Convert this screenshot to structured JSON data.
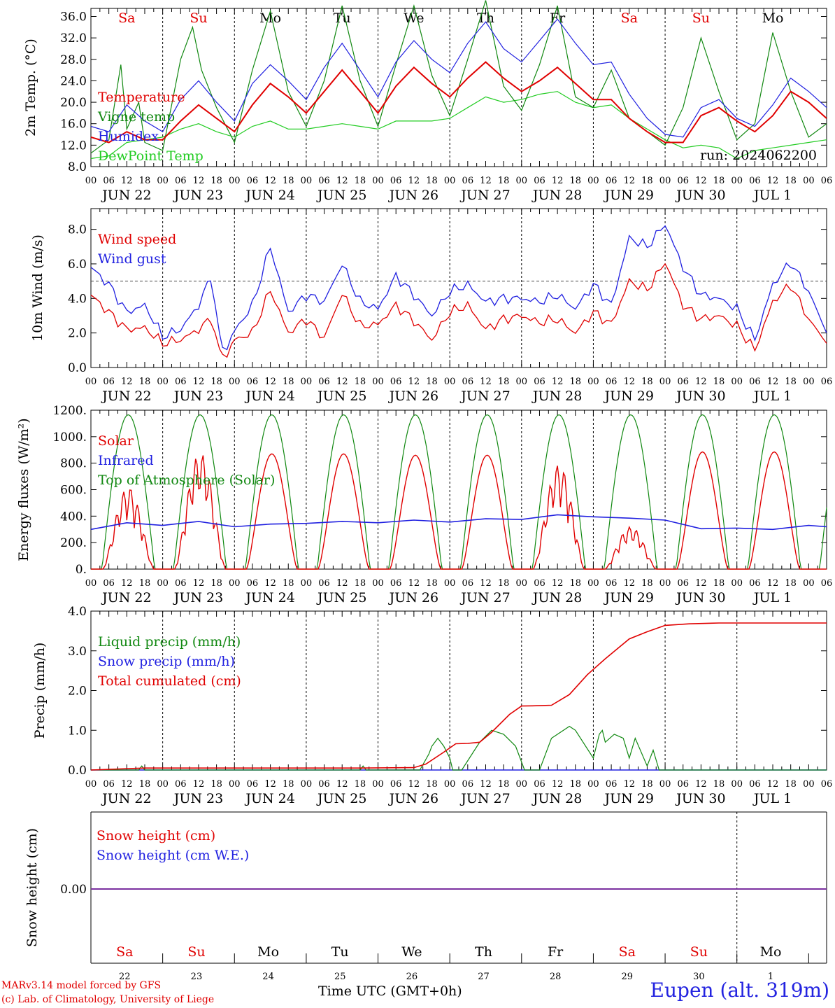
{
  "run_label": "run: 2024062200",
  "footer": {
    "model": "MARv3.14 model forced by GFS",
    "lab": "(c) Lab. of Climatology, University of Liege",
    "time_axis": "Time UTC (GMT+0h)",
    "location": "Eupen (alt. 319m)"
  },
  "days": [
    {
      "abbr": "Sa",
      "date": "JUN 22",
      "num": "22",
      "weekend": true
    },
    {
      "abbr": "Su",
      "date": "JUN 23",
      "num": "23",
      "weekend": true
    },
    {
      "abbr": "Mo",
      "date": "JUN 24",
      "num": "24",
      "weekend": false
    },
    {
      "abbr": "Tu",
      "date": "JUN 25",
      "num": "25",
      "weekend": false
    },
    {
      "abbr": "We",
      "date": "JUN 26",
      "num": "26",
      "weekend": false
    },
    {
      "abbr": "Th",
      "date": "JUN 27",
      "num": "27",
      "weekend": false
    },
    {
      "abbr": "Fr",
      "date": "JUN 28",
      "num": "28",
      "weekend": false
    },
    {
      "abbr": "Sa",
      "date": "JUN 29",
      "num": "29",
      "weekend": true
    },
    {
      "abbr": "Su",
      "date": "JUN 30",
      "num": "30",
      "weekend": true
    },
    {
      "abbr": "Mo",
      "date": "JUL  1",
      "num": "1",
      "weekend": false
    }
  ],
  "hour_labels": [
    "00",
    "06",
    "12",
    "18"
  ],
  "colors": {
    "red": "#e00000",
    "green": "#118811",
    "blue": "#2020e0",
    "lightgreen": "#22cc22",
    "purple": "#7a2fa0"
  },
  "chart_data": [
    {
      "type": "line",
      "ylabel": "2m Temp. (°C)",
      "ylim": [
        8,
        37.5
      ],
      "yticks": [
        8,
        12,
        16,
        20,
        24,
        28,
        32,
        36
      ],
      "ytick_labels": [
        "8.0",
        "12.0",
        "16.0",
        "20.0",
        "24.0",
        "28.0",
        "32.0",
        "36.0"
      ],
      "x_unit": "hours since Jun 22 00 UTC",
      "series": [
        {
          "name": "Temperature",
          "color": "#e00000",
          "x": [
            0,
            6,
            12,
            18,
            24,
            30,
            36,
            42,
            48,
            54,
            60,
            66,
            72,
            78,
            84,
            90,
            96,
            102,
            108,
            114,
            120,
            126,
            132,
            138,
            144,
            150,
            156,
            162,
            168,
            174,
            180,
            186,
            192,
            198,
            204,
            210,
            216,
            222,
            228,
            234,
            240,
            246
          ],
          "y": [
            13.5,
            12.5,
            14.5,
            13.0,
            13.0,
            16.5,
            19.5,
            17.0,
            14.5,
            19.5,
            23.5,
            21.0,
            18.0,
            22.0,
            26.0,
            22.0,
            18.0,
            23.0,
            26.5,
            23.5,
            21.0,
            24.5,
            27.5,
            24.5,
            22.0,
            24.0,
            26.5,
            23.5,
            20.5,
            20.5,
            17.0,
            14.5,
            12.5,
            12.5,
            17.5,
            19.0,
            16.5,
            14.5,
            17.5,
            22.0,
            20.0,
            17.0
          ]
        },
        {
          "name": "Vigne temp",
          "color": "#118811",
          "x": [
            0,
            6,
            10,
            12,
            16,
            18,
            24,
            30,
            34,
            37,
            42,
            48,
            54,
            60,
            66,
            72,
            78,
            84,
            90,
            96,
            102,
            108,
            114,
            120,
            126,
            132,
            138,
            144,
            150,
            156,
            162,
            168,
            174,
            180,
            186,
            192,
            198,
            204,
            210,
            216,
            222,
            228,
            234,
            240,
            246
          ],
          "y": [
            10.5,
            13,
            27,
            15,
            20,
            12.5,
            11.0,
            28,
            34,
            26,
            19,
            12.5,
            26,
            37,
            22,
            15.5,
            24,
            38,
            24,
            15.5,
            27,
            38,
            25,
            17.5,
            28,
            39,
            23,
            18.5,
            27,
            38,
            21,
            19.0,
            26,
            17,
            14.5,
            12.0,
            19,
            32,
            22,
            13.0,
            16,
            33,
            22,
            13.5,
            16
          ]
        },
        {
          "name": "Humidex",
          "color": "#2020e0",
          "x": [
            0,
            6,
            12,
            18,
            24,
            30,
            36,
            42,
            48,
            54,
            60,
            66,
            72,
            78,
            84,
            90,
            96,
            102,
            108,
            114,
            120,
            126,
            132,
            138,
            144,
            150,
            156,
            162,
            168,
            174,
            180,
            186,
            192,
            198,
            204,
            210,
            216,
            222,
            228,
            234,
            240,
            246
          ],
          "y": [
            15.5,
            14.5,
            19.5,
            16.5,
            14.5,
            20.5,
            24.0,
            20.0,
            16.5,
            23.5,
            27.0,
            24.0,
            20.5,
            26.5,
            31.0,
            26.0,
            21.0,
            27.5,
            31.5,
            28.0,
            25.5,
            31.0,
            35.0,
            30.0,
            27.5,
            31.5,
            35.5,
            31.0,
            27.0,
            27.5,
            21.5,
            17.0,
            14.0,
            13.5,
            19.0,
            20.5,
            17.0,
            15.5,
            19.5,
            24.5,
            22.0,
            19.0
          ]
        },
        {
          "name": "DewPoint Temp",
          "color": "#22cc22",
          "x": [
            0,
            6,
            12,
            18,
            24,
            30,
            36,
            42,
            48,
            54,
            60,
            66,
            72,
            78,
            84,
            90,
            96,
            102,
            108,
            114,
            120,
            126,
            132,
            138,
            144,
            150,
            156,
            162,
            168,
            174,
            180,
            186,
            192,
            198,
            204,
            210,
            216,
            222,
            228,
            234,
            240,
            246
          ],
          "y": [
            9.5,
            10.0,
            12.5,
            13.0,
            13.5,
            15.0,
            16.0,
            14.5,
            13.5,
            15.5,
            16.5,
            15.0,
            15.0,
            15.5,
            16.0,
            15.5,
            15.0,
            16.5,
            16.5,
            16.5,
            17.0,
            19.0,
            21.0,
            20.0,
            20.5,
            21.5,
            22.0,
            20.0,
            19.0,
            19.5,
            17.0,
            15.0,
            13.0,
            11.5,
            12.0,
            11.5,
            9.5,
            11.0,
            11.5,
            12.0,
            12.5,
            13.0
          ]
        }
      ]
    },
    {
      "type": "line",
      "ylabel": "10m Wind (m/s)",
      "ylim": [
        0,
        9.2
      ],
      "yticks": [
        0,
        2,
        4,
        6,
        8
      ],
      "ytick_labels": [
        "0.0",
        "2.0",
        "4.0",
        "6.0",
        "8.0"
      ],
      "reference_line": 5.0,
      "series": [
        {
          "name": "Wind speed",
          "color": "#e00000",
          "x": [
            0,
            6,
            12,
            18,
            24,
            30,
            36,
            40,
            44,
            48,
            54,
            60,
            66,
            72,
            78,
            84,
            90,
            96,
            102,
            108,
            114,
            120,
            126,
            132,
            138,
            144,
            150,
            156,
            162,
            168,
            174,
            180,
            186,
            192,
            198,
            204,
            210,
            216,
            222,
            228,
            234,
            240,
            246
          ],
          "y": [
            4.2,
            3.2,
            2.2,
            2.3,
            1.4,
            1.6,
            2.2,
            2.8,
            0.5,
            1.6,
            2.0,
            4.5,
            2.0,
            2.8,
            1.7,
            4.3,
            2.4,
            2.5,
            3.6,
            2.7,
            1.6,
            3.2,
            3.6,
            2.2,
            2.8,
            3.0,
            2.6,
            2.8,
            2.0,
            3.2,
            2.5,
            5.0,
            4.5,
            6.1,
            3.6,
            2.8,
            3.0,
            2.4,
            1.0,
            3.8,
            4.8,
            2.8,
            1.4
          ]
        },
        {
          "name": "Wind gust",
          "color": "#2020e0",
          "x": [
            0,
            6,
            12,
            18,
            24,
            30,
            36,
            40,
            44,
            48,
            54,
            60,
            66,
            72,
            78,
            84,
            90,
            96,
            102,
            108,
            114,
            120,
            126,
            132,
            138,
            144,
            150,
            156,
            162,
            168,
            174,
            180,
            186,
            192,
            198,
            204,
            210,
            216,
            222,
            228,
            234,
            240,
            246
          ],
          "y": [
            5.8,
            4.8,
            3.2,
            3.6,
            1.8,
            2.2,
            3.6,
            5.2,
            0.9,
            2.1,
            3.6,
            7.0,
            3.2,
            4.2,
            3.8,
            6.0,
            3.8,
            3.4,
            5.3,
            4.2,
            3.0,
            4.4,
            4.8,
            3.8,
            4.0,
            4.0,
            3.8,
            4.2,
            3.4,
            4.8,
            3.6,
            7.5,
            7.0,
            8.3,
            5.8,
            4.2,
            4.0,
            3.4,
            1.6,
            4.8,
            6.1,
            4.4,
            2.0
          ]
        }
      ]
    },
    {
      "type": "line",
      "ylabel": "Energy fluxes (W/m²)",
      "ylim": [
        0,
        1200
      ],
      "yticks": [
        0,
        200,
        400,
        600,
        800,
        1000,
        1200
      ],
      "ytick_labels": [
        "0.",
        "200.",
        "400.",
        "600.",
        "800.",
        "1000.",
        "1200."
      ],
      "series": [
        {
          "name": "Solar",
          "color": "#e00000",
          "peaks": [
            {
              "center": 12.5,
              "peak": 620
            },
            {
              "center": 36.5,
              "peak": 880
            },
            {
              "center": 60.5,
              "peak": 870
            },
            {
              "center": 84.5,
              "peak": 870
            },
            {
              "center": 108.5,
              "peak": 860
            },
            {
              "center": 132.5,
              "peak": 860
            },
            {
              "center": 156.5,
              "peak": 790
            },
            {
              "center": 180.5,
              "peak": 320
            },
            {
              "center": 204.5,
              "peak": 885
            },
            {
              "center": 228.5,
              "peak": 885
            }
          ],
          "half_width": 8.5
        },
        {
          "name": "Infrared",
          "color": "#2020e0",
          "x": [
            0,
            12,
            24,
            36,
            48,
            60,
            72,
            84,
            96,
            108,
            120,
            132,
            144,
            156,
            168,
            180,
            192,
            204,
            216,
            228,
            240,
            246
          ],
          "y": [
            300,
            350,
            330,
            360,
            320,
            340,
            345,
            360,
            350,
            370,
            355,
            380,
            375,
            410,
            395,
            385,
            370,
            305,
            310,
            300,
            330,
            320
          ]
        },
        {
          "name": "Top of Atmosphere (Solar)",
          "color": "#118811",
          "peaks_center": 12.5,
          "peak": 1165,
          "half_width": 8.8
        }
      ]
    },
    {
      "type": "line",
      "ylabel": "Precip (mm/h)",
      "ylim": [
        0,
        4
      ],
      "yticks": [
        0,
        1,
        2,
        3,
        4
      ],
      "ytick_labels": [
        "0.0",
        "1.0",
        "2.0",
        "3.0",
        "4.0"
      ],
      "series": [
        {
          "name": "Liquid precip (mm/h)",
          "color": "#118811",
          "x": [
            0,
            16,
            17,
            18,
            20,
            90,
            91,
            92,
            110,
            113,
            114,
            116,
            118,
            120,
            121,
            124,
            130,
            134,
            138,
            142,
            145,
            146,
            150,
            154,
            160,
            162,
            168,
            170,
            171,
            172,
            175,
            178,
            180,
            182,
            186,
            188,
            190,
            210,
            246
          ],
          "y": [
            0,
            0,
            0.1,
            0,
            0,
            0,
            0.1,
            0,
            0,
            0.4,
            0.6,
            0.8,
            0.6,
            0.3,
            0,
            0,
            0.7,
            1.0,
            0.9,
            0.6,
            0,
            0,
            0,
            0.8,
            1.1,
            1.0,
            0.3,
            0.9,
            1.0,
            0.7,
            0.9,
            0.8,
            0.3,
            0.8,
            0.1,
            0.5,
            0,
            0,
            0
          ]
        },
        {
          "name": "Snow precip (mm/h)",
          "color": "#2020e0",
          "x": [
            0,
            246
          ],
          "y": [
            0,
            0
          ]
        },
        {
          "name": "Total cumulated (cm)",
          "color": "#e00000",
          "x": [
            0,
            18,
            24,
            90,
            108,
            112,
            118,
            122,
            126,
            130,
            134,
            140,
            144,
            150,
            154,
            160,
            166,
            172,
            176,
            180,
            186,
            192,
            200,
            210,
            246
          ],
          "y": [
            0,
            0.05,
            0.05,
            0.05,
            0.06,
            0.15,
            0.45,
            0.66,
            0.67,
            0.7,
            0.95,
            1.4,
            1.61,
            1.62,
            1.63,
            1.9,
            2.4,
            2.8,
            3.05,
            3.3,
            3.48,
            3.64,
            3.68,
            3.7,
            3.7
          ]
        }
      ]
    },
    {
      "type": "line",
      "ylabel": "Snow height (cm)",
      "yticks": [
        0
      ],
      "ytick_labels": [
        "0.00"
      ],
      "series": [
        {
          "name": "Snow height (cm)",
          "color": "#e00000",
          "x": [
            0,
            246
          ],
          "y": [
            0,
            0
          ]
        },
        {
          "name": "Snow height (cm W.E.)",
          "color": "#2020e0",
          "x": [
            0,
            246
          ],
          "y": [
            0,
            0
          ]
        }
      ]
    }
  ]
}
